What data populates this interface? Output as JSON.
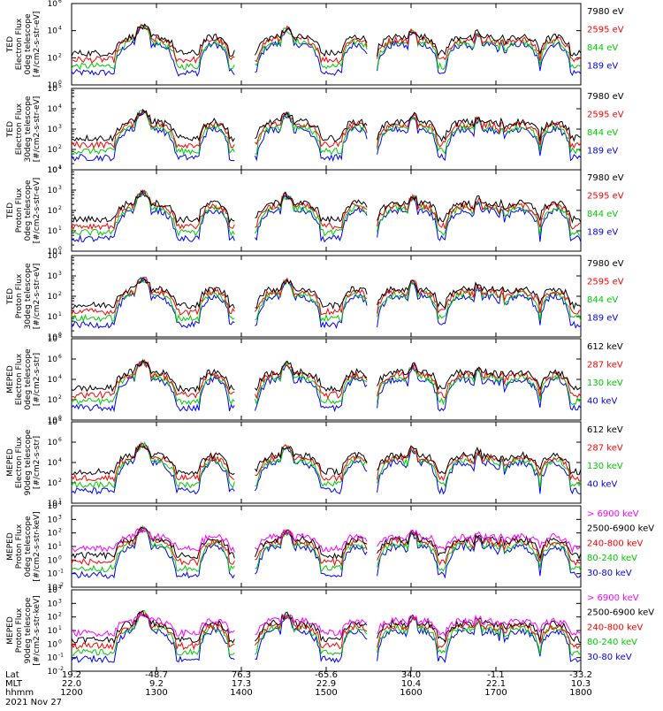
{
  "chart_data": {
    "type": "line",
    "date": "2021 Nov 27",
    "x_range_hhmm": [
      "1200",
      "1800"
    ],
    "x_footer": {
      "row_labels": [
        "Lat",
        "MLT",
        "hhmm"
      ],
      "columns": [
        {
          "lat": "19.2",
          "mlt": "22.0",
          "hhmm": "1200"
        },
        {
          "lat": "-48.7",
          "mlt": "9.2",
          "hhmm": "1300"
        },
        {
          "lat": "76.3",
          "mlt": "17.3",
          "hhmm": "1400"
        },
        {
          "lat": "-65.6",
          "mlt": "22.9",
          "hhmm": "1500"
        },
        {
          "lat": "34.0",
          "mlt": "10.4",
          "hhmm": "1600"
        },
        {
          "lat": "-1.1",
          "mlt": "22.1",
          "hhmm": "1700"
        },
        {
          "lat": "-33.2",
          "mlt": "10.3",
          "hhmm": "1800"
        }
      ]
    },
    "panels": [
      {
        "ylabel": [
          "TED",
          "Electron Flux",
          "0deg telescope",
          "[#/cm2-s-str-eV]"
        ],
        "y_exponents": [
          6,
          4,
          2,
          0
        ],
        "minor_ticks": false,
        "legend": [
          {
            "label": "7980 eV",
            "color": "#000000"
          },
          {
            "label": "2595 eV",
            "color": "#ff0000"
          },
          {
            "label": "844 eV",
            "color": "#00cc00"
          },
          {
            "label": "189 eV",
            "color": "#0000ff"
          }
        ]
      },
      {
        "ylabel": [
          "TED",
          "Electron Flux",
          "30deg telescope",
          "[#/cm2-s-str-eV]"
        ],
        "y_exponents": [
          5,
          4,
          3,
          2,
          1
        ],
        "minor_ticks": true,
        "legend": [
          {
            "label": "7980 eV",
            "color": "#000000"
          },
          {
            "label": "2595 eV",
            "color": "#ff0000"
          },
          {
            "label": "844 eV",
            "color": "#00cc00"
          },
          {
            "label": "189 eV",
            "color": "#0000ff"
          }
        ]
      },
      {
        "ylabel": [
          "TED",
          "Proton Flux",
          "0deg telescope",
          "[#/cm2-s-str-eV]"
        ],
        "y_exponents": [
          4,
          3,
          2,
          1,
          0
        ],
        "minor_ticks": true,
        "legend": [
          {
            "label": "7980 eV",
            "color": "#000000"
          },
          {
            "label": "2595 eV",
            "color": "#ff0000"
          },
          {
            "label": "844 eV",
            "color": "#00cc00"
          },
          {
            "label": "189 eV",
            "color": "#0000ff"
          }
        ]
      },
      {
        "ylabel": [
          "TED",
          "Proton Flux",
          "30deg telescope",
          "[#/cm2-s-str-eV]"
        ],
        "y_exponents": [
          4,
          3,
          2,
          1,
          0
        ],
        "minor_ticks": true,
        "legend": [
          {
            "label": "7980 eV",
            "color": "#000000"
          },
          {
            "label": "2595 eV",
            "color": "#ff0000"
          },
          {
            "label": "844 eV",
            "color": "#00cc00"
          },
          {
            "label": "189 eV",
            "color": "#0000ff"
          }
        ]
      },
      {
        "ylabel": [
          "MEPED",
          "Electron Flux",
          "0deg telescope",
          "[#/cm2-s-str]"
        ],
        "y_exponents": [
          8,
          6,
          4,
          2,
          0
        ],
        "minor_ticks": false,
        "legend": [
          {
            "label": "612 keV",
            "color": "#000000"
          },
          {
            "label": "287 keV",
            "color": "#ff0000"
          },
          {
            "label": "130 keV",
            "color": "#00cc00"
          },
          {
            "label": "40 keV",
            "color": "#0000ff"
          }
        ]
      },
      {
        "ylabel": [
          "MEPED",
          "Electron Flux",
          "90deg telescope",
          "[#/cm2-s-str]"
        ],
        "y_exponents": [
          8,
          6,
          4,
          2,
          1
        ],
        "minor_ticks": false,
        "legend": [
          {
            "label": "612 keV",
            "color": "#000000"
          },
          {
            "label": "287 keV",
            "color": "#ff0000"
          },
          {
            "label": "130 keV",
            "color": "#00cc00"
          },
          {
            "label": "40 keV",
            "color": "#0000ff"
          }
        ]
      },
      {
        "ylabel": [
          "MEPED",
          "Proton Flux",
          "0deg telescope",
          "[#/cm2-s-str-keV]"
        ],
        "y_exponents": [
          4,
          3,
          2,
          1,
          0,
          -1,
          -2
        ],
        "minor_ticks": false,
        "legend": [
          {
            "label": "> 6900 keV",
            "color": "#ff00ff"
          },
          {
            "label": "2500-6900 keV",
            "color": "#000000"
          },
          {
            "label": "240-800 keV",
            "color": "#ff0000"
          },
          {
            "label": "80-240 keV",
            "color": "#00cc00"
          },
          {
            "label": "30-80 keV",
            "color": "#0000ff"
          }
        ]
      },
      {
        "ylabel": [
          "MEPED",
          "Proton Flux",
          "90deg telescope",
          "[#/cm2-s-str-keV]"
        ],
        "y_exponents": [
          4,
          3,
          2,
          1,
          0,
          -1,
          -2
        ],
        "minor_ticks": false,
        "legend": [
          {
            "label": "> 6900 keV",
            "color": "#ff00ff"
          },
          {
            "label": "2500-6900 keV",
            "color": "#000000"
          },
          {
            "label": "240-800 keV",
            "color": "#ff0000"
          },
          {
            "label": "80-240 keV",
            "color": "#00cc00"
          },
          {
            "label": "30-80 keV",
            "color": "#0000ff"
          }
        ]
      }
    ]
  }
}
